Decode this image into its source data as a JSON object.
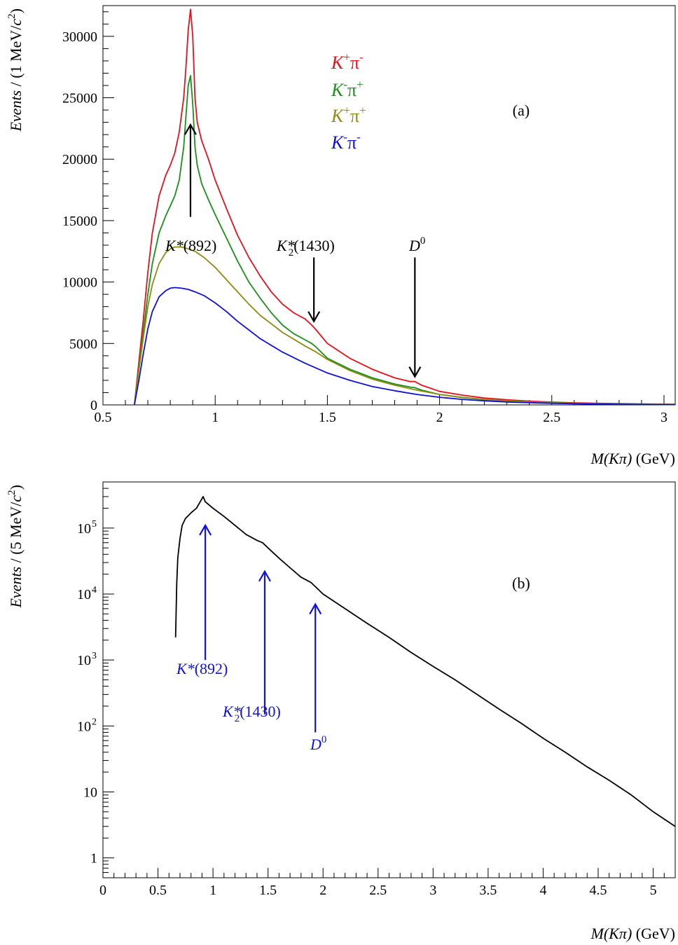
{
  "chart_data": [
    {
      "panel_label": "(a)",
      "type": "line",
      "xlabel": {
        "main": "M(Kπ)",
        "unit": "(GeV)"
      },
      "ylabel": {
        "main": "Events",
        "rest": "/ (1 MeV/",
        "c": "c",
        "sup": "2",
        "close": ")"
      },
      "xlim": [
        0.5,
        3.05
      ],
      "ylim": [
        0,
        32500
      ],
      "xticks": [
        0.5,
        1,
        1.5,
        2,
        2.5,
        3
      ],
      "xtick_labels": [
        "0.5",
        "1",
        "1.5",
        "2",
        "2.5",
        "3"
      ],
      "yticks": [
        0,
        5000,
        10000,
        15000,
        20000,
        25000,
        30000
      ],
      "ytick_labels": [
        "0",
        "5000",
        "10000",
        "15000",
        "20000",
        "25000",
        "30000"
      ],
      "grid": false,
      "legend": {
        "placement": "top-center",
        "entries": [
          {
            "k": "K",
            "ksup": "+",
            "pi": "π",
            "pisup": "-",
            "color": "#e8101a"
          },
          {
            "k": "K",
            "ksup": "-",
            "pi": "π",
            "pisup": "+",
            "color": "#1a9018"
          },
          {
            "k": "K",
            "ksup": "+",
            "pi": "π",
            "pisup": "+",
            "color": "#8c8c10"
          },
          {
            "k": "K",
            "ksup": "-",
            "pi": "π",
            "pisup": "-",
            "color": "#1010d8"
          }
        ]
      },
      "series": [
        {
          "color": "#e8101a",
          "x": [
            0.64,
            0.66,
            0.68,
            0.7,
            0.72,
            0.75,
            0.78,
            0.8,
            0.82,
            0.84,
            0.86,
            0.87,
            0.88,
            0.89,
            0.9,
            0.91,
            0.92,
            0.94,
            0.97,
            1.0,
            1.05,
            1.1,
            1.15,
            1.2,
            1.25,
            1.3,
            1.35,
            1.4,
            1.43,
            1.45,
            1.5,
            1.6,
            1.7,
            1.8,
            1.87,
            1.89,
            1.92,
            2.0,
            2.1,
            2.2,
            2.3,
            2.4,
            2.5,
            2.6,
            2.7,
            2.8,
            2.9,
            3.05
          ],
          "y": [
            0,
            3500,
            7000,
            10800,
            14000,
            17000,
            18700,
            19500,
            20500,
            22200,
            25000,
            27500,
            30500,
            32200,
            30000,
            25000,
            23000,
            21500,
            20000,
            18300,
            16000,
            13800,
            12000,
            10500,
            9200,
            8200,
            7500,
            7000,
            6500,
            6100,
            5000,
            3800,
            2900,
            2200,
            1900,
            1900,
            1600,
            1100,
            800,
            560,
            420,
            310,
            230,
            170,
            130,
            100,
            75,
            50
          ]
        },
        {
          "color": "#1a9018",
          "x": [
            0.64,
            0.66,
            0.68,
            0.7,
            0.72,
            0.75,
            0.78,
            0.8,
            0.82,
            0.84,
            0.86,
            0.87,
            0.88,
            0.89,
            0.9,
            0.91,
            0.92,
            0.94,
            0.97,
            1.0,
            1.05,
            1.1,
            1.15,
            1.2,
            1.25,
            1.3,
            1.35,
            1.4,
            1.43,
            1.45,
            1.5,
            1.6,
            1.7,
            1.8,
            1.87,
            1.89,
            1.92,
            2.0,
            2.1,
            2.2,
            2.3,
            2.4,
            2.5,
            2.6,
            2.7,
            2.8,
            2.9,
            3.05
          ],
          "y": [
            0,
            3000,
            6000,
            9000,
            11500,
            14000,
            15400,
            16200,
            17000,
            18300,
            21000,
            23500,
            26000,
            26800,
            24500,
            21000,
            19500,
            18000,
            16700,
            15500,
            13600,
            11700,
            10000,
            8700,
            7500,
            6500,
            5800,
            5300,
            5000,
            4700,
            3800,
            2900,
            2200,
            1700,
            1450,
            1400,
            1200,
            850,
            600,
            430,
            320,
            240,
            180,
            130,
            100,
            75,
            55,
            40
          ]
        },
        {
          "color": "#8c8c10",
          "x": [
            0.64,
            0.66,
            0.68,
            0.7,
            0.72,
            0.75,
            0.78,
            0.8,
            0.82,
            0.85,
            0.88,
            0.91,
            0.95,
            1.0,
            1.05,
            1.1,
            1.15,
            1.2,
            1.3,
            1.4,
            1.45,
            1.5,
            1.6,
            1.7,
            1.8,
            1.9,
            2.0,
            2.1,
            2.2,
            2.3,
            2.4,
            2.5,
            2.6,
            2.7,
            2.8,
            2.9,
            3.05
          ],
          "y": [
            0,
            2800,
            5500,
            8000,
            9800,
            11500,
            12400,
            12700,
            12850,
            12850,
            12700,
            12500,
            12000,
            11200,
            10200,
            9200,
            8200,
            7300,
            5900,
            4800,
            4300,
            3700,
            2800,
            2100,
            1600,
            1200,
            850,
            620,
            450,
            330,
            240,
            175,
            130,
            95,
            70,
            52,
            35
          ]
        },
        {
          "color": "#1010d8",
          "x": [
            0.64,
            0.66,
            0.68,
            0.7,
            0.72,
            0.75,
            0.78,
            0.8,
            0.82,
            0.85,
            0.88,
            0.91,
            0.95,
            1.0,
            1.05,
            1.1,
            1.15,
            1.2,
            1.3,
            1.4,
            1.45,
            1.5,
            1.6,
            1.7,
            1.8,
            1.9,
            2.0,
            2.1,
            2.2,
            2.3,
            2.4,
            2.5,
            2.6,
            2.7,
            2.8,
            2.9,
            3.05
          ],
          "y": [
            0,
            2000,
            4200,
            6200,
            7600,
            8800,
            9300,
            9500,
            9550,
            9500,
            9400,
            9200,
            8900,
            8300,
            7600,
            6800,
            6100,
            5400,
            4300,
            3400,
            3000,
            2600,
            2000,
            1500,
            1150,
            850,
            620,
            450,
            330,
            240,
            175,
            130,
            95,
            70,
            50,
            37,
            25
          ]
        }
      ],
      "annotations": [
        {
          "id": "kstar892",
          "base": "K",
          "star": "*",
          "mass": "(892)",
          "arrow_x": 0.89,
          "arrow_from_y": 15300,
          "arrow_to_y": 22800,
          "color": "#000000"
        },
        {
          "id": "k2star1430",
          "base": "K",
          "star": "*",
          "sub": "2",
          "mass": "(1430)",
          "arrow_x": 1.44,
          "arrow_from_y": 12000,
          "arrow_to_y": 6800,
          "color": "#000000"
        },
        {
          "id": "d0",
          "base": "D",
          "sup": "0",
          "arrow_x": 1.89,
          "arrow_from_y": 12000,
          "arrow_to_y": 2300,
          "color": "#000000"
        }
      ]
    },
    {
      "panel_label": "(b)",
      "type": "line",
      "xlabel": {
        "main": "M(Kπ)",
        "unit": "(GeV)"
      },
      "ylabel": {
        "main": "Events",
        "rest": "/ (5 MeV/",
        "c": "c",
        "sup": "2",
        "close": ")"
      },
      "xlim": [
        0,
        5.2
      ],
      "ylim": [
        0.5,
        500000
      ],
      "yscale": "log",
      "xticks": [
        0,
        0.5,
        1,
        1.5,
        2,
        2.5,
        3,
        3.5,
        4,
        4.5,
        5
      ],
      "xtick_labels": [
        "0",
        "0.5",
        "1",
        "1.5",
        "2",
        "2.5",
        "3",
        "3.5",
        "4",
        "4.5",
        "5"
      ],
      "yticks": [
        1,
        10,
        100,
        1000,
        10000,
        100000
      ],
      "ytick_labels": [
        {
          "base": "1",
          "sup": ""
        },
        {
          "base": "10",
          "sup": ""
        },
        {
          "base": "10",
          "sup": "2"
        },
        {
          "base": "10",
          "sup": "3"
        },
        {
          "base": "10",
          "sup": "4"
        },
        {
          "base": "10",
          "sup": "5"
        }
      ],
      "grid": false,
      "series": [
        {
          "color": "#000000",
          "x": [
            0.66,
            0.67,
            0.68,
            0.7,
            0.72,
            0.75,
            0.8,
            0.85,
            0.89,
            0.91,
            0.93,
            1.0,
            1.1,
            1.2,
            1.3,
            1.4,
            1.45,
            1.5,
            1.6,
            1.7,
            1.8,
            1.89,
            1.95,
            2.0,
            2.2,
            2.4,
            2.6,
            2.8,
            3.0,
            3.2,
            3.4,
            3.6,
            3.8,
            4.0,
            4.2,
            4.4,
            4.6,
            4.8,
            5.0,
            5.2
          ],
          "y": [
            2200,
            14000,
            35000,
            70000,
            110000,
            140000,
            170000,
            200000,
            260000,
            300000,
            250000,
            200000,
            150000,
            110000,
            80000,
            65000,
            60000,
            50000,
            35000,
            25000,
            18000,
            15000,
            12000,
            10000,
            6000,
            3600,
            2200,
            1300,
            800,
            500,
            300,
            180,
            110,
            65,
            40,
            24,
            15,
            9,
            5,
            3
          ]
        }
      ],
      "annotations": [
        {
          "id": "kstar892",
          "base": "K",
          "star": "*",
          "mass": "(892)",
          "arrow_x": 0.93,
          "arrow_from_y": 1000,
          "arrow_to_y": 110000,
          "color": "#1010e0"
        },
        {
          "id": "k2star1430",
          "base": "K",
          "star": "*",
          "sub": "2",
          "mass": "(1430)",
          "arrow_x": 1.47,
          "arrow_from_y": 150,
          "arrow_to_y": 22000,
          "color": "#1010e0"
        },
        {
          "id": "d0",
          "base": "D",
          "sup": "0",
          "arrow_x": 1.93,
          "arrow_from_y": 80,
          "arrow_to_y": 7000,
          "color": "#1010e0"
        }
      ]
    }
  ]
}
